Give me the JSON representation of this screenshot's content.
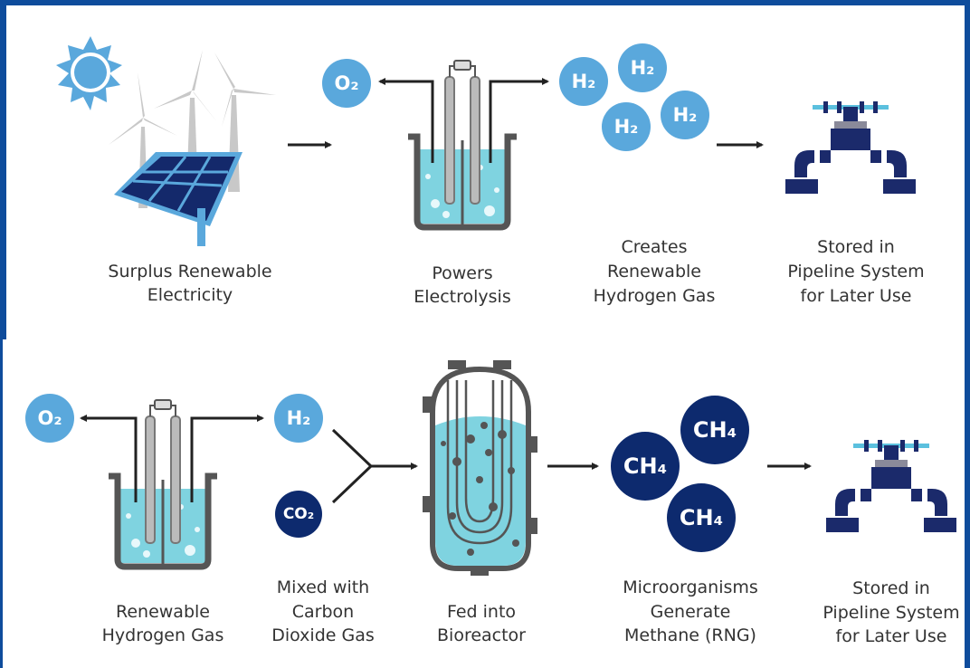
{
  "top_row": {
    "captions": [
      [
        "Surplus Renewable",
        "Electricity"
      ],
      [
        "Powers",
        "Electrolysis"
      ],
      [
        "Creates",
        "Renewable",
        "Hydrogen Gas"
      ],
      [
        "Stored in",
        "Pipeline System",
        "for Later Use"
      ]
    ],
    "molecules": [
      "O₂",
      "H₂",
      "H₂",
      "H₂",
      "H₂"
    ]
  },
  "bottom_row": {
    "captions": [
      [
        "Renewable",
        "Hydrogen Gas"
      ],
      [
        "Mixed with",
        "Carbon",
        "Dioxide Gas"
      ],
      [
        "Fed into",
        "Bioreactor"
      ],
      [
        "Microorganisms",
        "Generate",
        "Methane (RNG)"
      ],
      [
        "Stored in",
        "Pipeline System",
        "for Later Use"
      ]
    ],
    "molecules": [
      "O₂",
      "H₂",
      "CO₂",
      "CH₄",
      "CH₄",
      "CH₄"
    ]
  }
}
